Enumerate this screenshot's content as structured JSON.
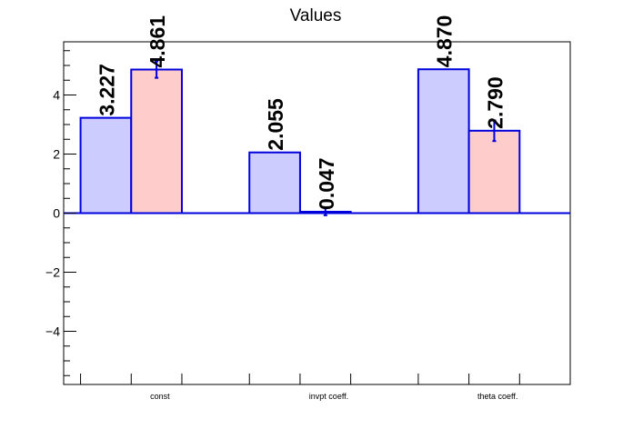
{
  "chart_data": {
    "type": "bar",
    "title": "Values",
    "categories": [
      "const",
      "invpt coeff.",
      "theta coeff."
    ],
    "series": [
      {
        "values": [
          3.227,
          2.055,
          4.87
        ],
        "errors": [
          0,
          0,
          0
        ]
      },
      {
        "values": [
          4.861,
          0.047,
          2.79
        ],
        "errors": [
          0.28,
          0.12,
          0.35
        ]
      }
    ],
    "value_labels": [
      [
        "3.227",
        "2.055",
        "4.870"
      ],
      [
        "4.861",
        "0.047",
        "2.790"
      ]
    ],
    "ylim": [
      -5.8,
      5.8
    ],
    "yticks": [
      -4,
      -2,
      0,
      2,
      4
    ],
    "ytick_labels": [
      "−4",
      "−2",
      "0",
      "2",
      "4"
    ],
    "grid": false,
    "legend": "none",
    "colors": {
      "series_fill": [
        "#ccccff",
        "#ffcccc"
      ],
      "bar_outline": "#0000dd",
      "axis": "#000000",
      "error_bar": "#0000dd"
    }
  }
}
